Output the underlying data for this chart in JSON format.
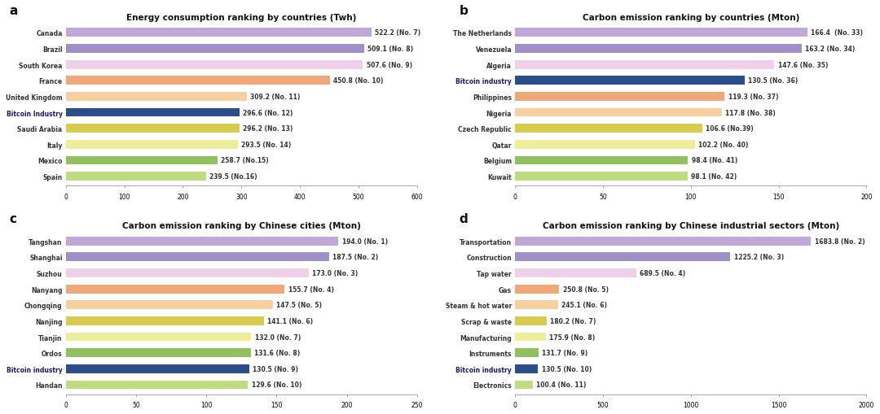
{
  "panel_a": {
    "title": "Energy consumption ranking by countries (Twh)",
    "label": "a",
    "categories": [
      "Canada",
      "Brazil",
      "South Korea",
      "France",
      "United Kingdom",
      "Bitcoin Industry",
      "Saudi Arabia",
      "Italy",
      "Mexico",
      "Spain"
    ],
    "values": [
      522.2,
      509.1,
      507.6,
      450.8,
      309.2,
      296.6,
      296.2,
      293.5,
      258.7,
      239.5
    ],
    "bar_labels": [
      "522.2 (No. 7)",
      "509.1 (No. 8)",
      "507.6 (No. 9)",
      "450.8 (No. 10)",
      "309.2 (No. 11)",
      "296.6 (No. 12)",
      "296.2 (No. 13)",
      "293.5 (No. 14)",
      "258.7 (No.15)",
      "239.5 (No.16)"
    ],
    "colors": [
      "#c0a8d8",
      "#a090c8",
      "#f0d0e8",
      "#f0a878",
      "#f8d0a0",
      "#2b4d8c",
      "#d8cc50",
      "#eeee98",
      "#90c060",
      "#c0dc80"
    ],
    "xlim": [
      0,
      600
    ],
    "xticks": [
      0,
      100,
      200,
      300,
      400,
      500,
      600
    ],
    "bitcoin_idx": 5
  },
  "panel_b": {
    "title": "Carbon emission ranking by countries (Mton)",
    "label": "b",
    "categories": [
      "The Netherlands",
      "Venezuela",
      "Algeria",
      "Bitcoin industry",
      "Philippines",
      "Nigeria",
      "Czech Republic",
      "Qatar",
      "Belgium",
      "Kuwait"
    ],
    "values": [
      166.4,
      163.2,
      147.6,
      130.5,
      119.3,
      117.8,
      106.6,
      102.2,
      98.4,
      98.1
    ],
    "bar_labels": [
      "166.4  (No. 33)",
      "163.2 (No. 34)",
      "147.6 (No. 35)",
      "130.5 (No. 36)",
      "119.3 (No. 37)",
      "117.8 (No. 38)",
      "106.6 (No.39)",
      "102.2 (No. 40)",
      "98.4 (No. 41)",
      "98.1 (No. 42)"
    ],
    "colors": [
      "#c0a8d8",
      "#a090c8",
      "#f0d0e8",
      "#2b4d8c",
      "#f0a878",
      "#f8d0a0",
      "#d8cc50",
      "#eeee98",
      "#90c060",
      "#c0dc80"
    ],
    "xlim": [
      0,
      200
    ],
    "xticks": [
      0,
      50,
      100,
      150,
      200
    ],
    "bitcoin_idx": 3
  },
  "panel_c": {
    "title": "Carbon emission ranking by Chinese cities (Mton)",
    "label": "c",
    "categories": [
      "Tangshan",
      "Shanghai",
      "Suzhou",
      "Nanyang",
      "Chongqing",
      "Nanjing",
      "Tianjin",
      "Ordos",
      "Bitcoin industry",
      "Handan"
    ],
    "values": [
      194.0,
      187.5,
      173.0,
      155.7,
      147.5,
      141.1,
      132.0,
      131.6,
      130.5,
      129.6
    ],
    "bar_labels": [
      "194.0 (No. 1)",
      "187.5 (No. 2)",
      "173.0 (No. 3)",
      "155.7 (No. 4)",
      "147.5 (No. 5)",
      "141.1 (No. 6)",
      "132.0 (No. 7)",
      "131.6 (No. 8)",
      "130.5 (No. 9)",
      "129.6 (No. 10)"
    ],
    "colors": [
      "#c0a8d8",
      "#a090c8",
      "#f0d0e8",
      "#f0a878",
      "#f8d0a0",
      "#d8cc50",
      "#eeee98",
      "#90c060",
      "#2b4d8c",
      "#c0dc80"
    ],
    "xlim": [
      0,
      250
    ],
    "xticks": [
      0,
      50,
      100,
      150,
      200,
      250
    ],
    "bitcoin_idx": 8
  },
  "panel_d": {
    "title": "Carbon emission ranking by Chinese industrial sectors (Mton)",
    "label": "d",
    "categories": [
      "Transportation",
      "Construction",
      "Tap water",
      "Gas",
      "Steam & hot water",
      "Scrap & waste",
      "Manufacturing",
      "Instruments",
      "Bitcoin industry",
      "Electronics"
    ],
    "values": [
      1683.8,
      1225.2,
      689.5,
      250.8,
      245.1,
      180.2,
      175.9,
      131.7,
      130.5,
      100.4
    ],
    "bar_labels": [
      "1683.8 (No. 2)",
      "1225.2 (No. 3)",
      "689.5 (No. 4)",
      "250.8 (No. 5)",
      "245.1 (No. 6)",
      "180.2 (No. 7)",
      "175.9 (No. 8)",
      "131.7 (No. 9)",
      "130.5 (No. 10)",
      "100.4 (No. 11)"
    ],
    "colors": [
      "#c0a8d8",
      "#a090c8",
      "#f0d0e8",
      "#f0a878",
      "#f8d0a0",
      "#d8cc50",
      "#eeee98",
      "#90c060",
      "#2b4d8c",
      "#c0dc80"
    ],
    "xlim": [
      0,
      2000
    ],
    "xticks": [
      0,
      500,
      1000,
      1500,
      2000
    ],
    "bitcoin_idx": 8
  },
  "background_color": "#ffffff",
  "bar_height": 0.55,
  "label_fontsize": 5.5,
  "title_fontsize": 7.5,
  "tick_fontsize": 5.5,
  "ytick_fontsize": 5.5,
  "panel_label_fontsize": 11,
  "annotation_color": "#333333",
  "bitcoin_label_color": "#1a1a6e"
}
